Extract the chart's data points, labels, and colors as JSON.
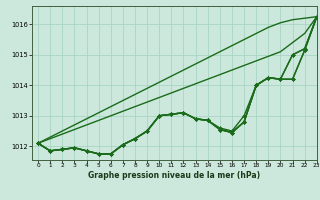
{
  "background_color": "#cce8dc",
  "grid_color": "#a8d4c4",
  "line_color": "#1a6b1a",
  "title": "Graphe pression niveau de la mer (hPa)",
  "xlim": [
    -0.5,
    23
  ],
  "ylim": [
    1011.55,
    1016.6
  ],
  "yticks": [
    1012,
    1013,
    1014,
    1015,
    1016
  ],
  "xticks": [
    0,
    1,
    2,
    3,
    4,
    5,
    6,
    7,
    8,
    9,
    10,
    11,
    12,
    13,
    14,
    15,
    16,
    17,
    18,
    19,
    20,
    21,
    22,
    23
  ],
  "series": [
    [
      1012.1,
      1011.85,
      1011.9,
      1011.95,
      1011.85,
      1011.75,
      1011.75,
      1012.05,
      1012.25,
      1012.5,
      1013.0,
      1013.05,
      1013.1,
      1012.9,
      1012.85,
      1012.6,
      1012.5,
      1013.0,
      1014.0,
      1014.25,
      1014.2,
      1014.2,
      1015.15,
      1016.25
    ],
    [
      1012.1,
      1011.85,
      1011.9,
      1011.95,
      1011.85,
      1011.75,
      1011.75,
      1012.05,
      1012.25,
      1012.5,
      1013.0,
      1013.05,
      1013.1,
      1012.9,
      1012.85,
      1012.55,
      1012.45,
      1012.8,
      1014.0,
      1014.25,
      1014.2,
      1014.2,
      1015.15,
      1016.25
    ],
    [
      1012.1,
      1011.85,
      1011.9,
      1011.95,
      1011.85,
      1011.75,
      1011.75,
      1012.05,
      1012.25,
      1012.5,
      1013.0,
      1013.05,
      1013.1,
      1012.9,
      1012.85,
      1012.55,
      1012.45,
      1012.8,
      1014.0,
      1014.25,
      1014.2,
      1015.0,
      1015.2,
      1016.25
    ],
    [
      1012.1,
      1011.85,
      1011.9,
      1011.95,
      1011.85,
      1011.75,
      1011.75,
      1012.05,
      1012.25,
      1012.5,
      1013.0,
      1013.05,
      1013.1,
      1012.9,
      1012.85,
      1012.55,
      1012.45,
      1012.8,
      1014.0,
      1014.25,
      1014.2,
      1015.0,
      1015.2,
      1016.25
    ],
    [
      1012.1,
      1012.3,
      1012.5,
      1012.7,
      1012.9,
      1013.1,
      1013.3,
      1013.5,
      1013.7,
      1013.9,
      1014.1,
      1014.3,
      1014.5,
      1014.7,
      1014.9,
      1015.1,
      1015.3,
      1015.5,
      1015.7,
      1015.9,
      1016.05,
      1016.15,
      1016.2,
      1016.25
    ],
    [
      1012.1,
      1012.25,
      1012.4,
      1012.55,
      1012.7,
      1012.85,
      1013.0,
      1013.15,
      1013.3,
      1013.45,
      1013.6,
      1013.75,
      1013.9,
      1014.05,
      1014.2,
      1014.35,
      1014.5,
      1014.65,
      1014.8,
      1014.95,
      1015.1,
      1015.4,
      1015.7,
      1016.25
    ]
  ],
  "line_widths": [
    1.0,
    1.0,
    1.0,
    1.0,
    1.0,
    1.0
  ],
  "marker": "D",
  "marker_size": 2.0
}
